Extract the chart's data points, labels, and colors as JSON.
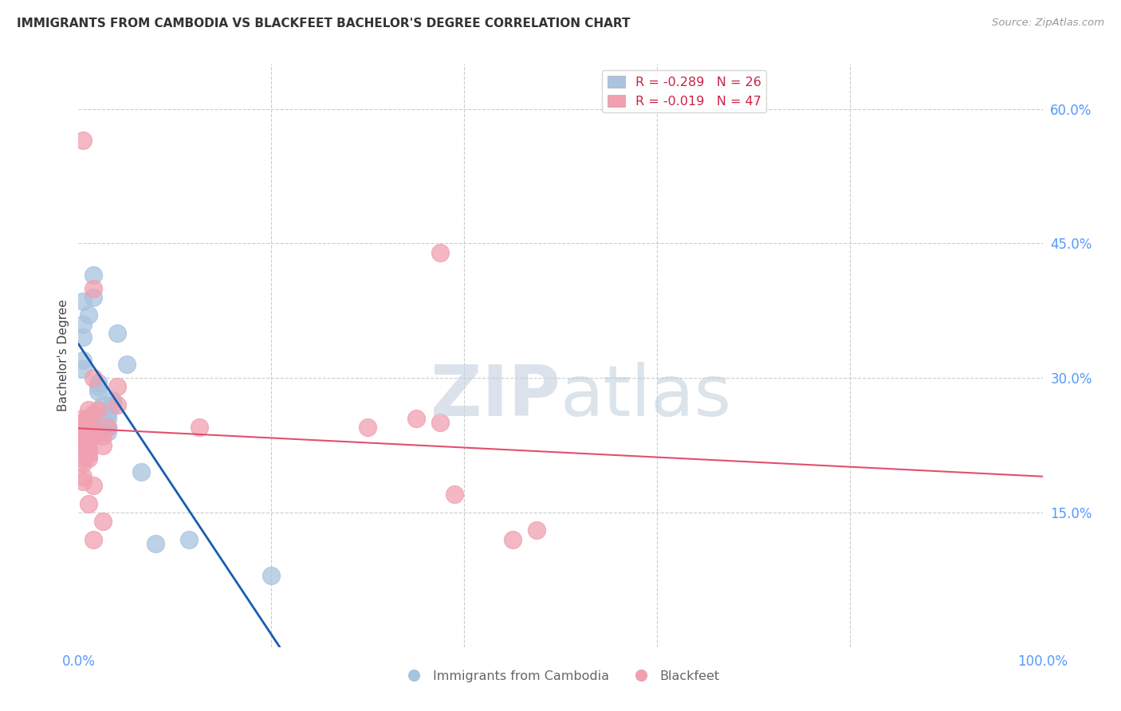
{
  "title": "IMMIGRANTS FROM CAMBODIA VS BLACKFEET BACHELOR'S DEGREE CORRELATION CHART",
  "source": "Source: ZipAtlas.com",
  "ylabel": "Bachelor's Degree",
  "legend_blue_r": "R = -0.289",
  "legend_blue_n": "N = 26",
  "legend_pink_r": "R = -0.019",
  "legend_pink_n": "N = 47",
  "legend_label_blue": "Immigrants from Cambodia",
  "legend_label_pink": "Blackfeet",
  "blue_points": [
    [
      0.5,
      38.5
    ],
    [
      1.5,
      41.5
    ],
    [
      1.0,
      37.0
    ],
    [
      0.5,
      36.0
    ],
    [
      0.5,
      34.5
    ],
    [
      0.5,
      32.0
    ],
    [
      0.5,
      31.0
    ],
    [
      1.5,
      39.0
    ],
    [
      2.0,
      29.5
    ],
    [
      2.0,
      29.0
    ],
    [
      2.0,
      28.5
    ],
    [
      2.5,
      27.0
    ],
    [
      3.0,
      26.0
    ],
    [
      2.5,
      25.5
    ],
    [
      3.0,
      25.5
    ],
    [
      2.5,
      25.0
    ],
    [
      3.0,
      24.5
    ],
    [
      3.0,
      24.0
    ],
    [
      3.5,
      27.5
    ],
    [
      3.5,
      27.0
    ],
    [
      4.0,
      35.0
    ],
    [
      5.0,
      31.5
    ],
    [
      6.5,
      19.5
    ],
    [
      8.0,
      11.5
    ],
    [
      11.5,
      12.0
    ],
    [
      20.0,
      8.0
    ]
  ],
  "pink_points": [
    [
      0.5,
      56.5
    ],
    [
      0.5,
      25.5
    ],
    [
      0.5,
      25.0
    ],
    [
      0.5,
      24.5
    ],
    [
      0.5,
      24.0
    ],
    [
      0.5,
      23.5
    ],
    [
      0.5,
      23.0
    ],
    [
      0.5,
      22.5
    ],
    [
      0.5,
      22.0
    ],
    [
      0.5,
      21.0
    ],
    [
      0.5,
      20.5
    ],
    [
      0.5,
      19.0
    ],
    [
      0.5,
      18.5
    ],
    [
      1.0,
      26.5
    ],
    [
      1.0,
      25.5
    ],
    [
      1.0,
      25.0
    ],
    [
      1.0,
      24.5
    ],
    [
      1.0,
      24.0
    ],
    [
      1.0,
      23.5
    ],
    [
      1.0,
      23.0
    ],
    [
      1.0,
      22.0
    ],
    [
      1.0,
      21.5
    ],
    [
      1.0,
      21.0
    ],
    [
      1.0,
      16.0
    ],
    [
      1.5,
      40.0
    ],
    [
      1.5,
      30.0
    ],
    [
      1.5,
      26.0
    ],
    [
      1.5,
      24.0
    ],
    [
      1.5,
      23.5
    ],
    [
      1.5,
      18.0
    ],
    [
      1.5,
      12.0
    ],
    [
      2.0,
      26.5
    ],
    [
      2.0,
      24.0
    ],
    [
      2.5,
      23.5
    ],
    [
      2.5,
      22.5
    ],
    [
      2.5,
      14.0
    ],
    [
      3.0,
      24.5
    ],
    [
      4.0,
      29.0
    ],
    [
      4.0,
      27.0
    ],
    [
      12.5,
      24.5
    ],
    [
      30.0,
      24.5
    ],
    [
      35.0,
      25.5
    ],
    [
      37.5,
      44.0
    ],
    [
      37.5,
      25.0
    ],
    [
      39.0,
      17.0
    ],
    [
      45.0,
      12.0
    ],
    [
      47.5,
      13.0
    ]
  ],
  "blue_color": "#a8c4e0",
  "pink_color": "#f0a0b0",
  "blue_line_color": "#1a5cb0",
  "pink_line_color": "#e05070",
  "background_color": "#ffffff",
  "grid_color": "#cccccc",
  "title_color": "#333333",
  "axis_label_color": "#5599ff",
  "xlim": [
    0,
    100
  ],
  "ylim": [
    0,
    65
  ],
  "yticks": [
    15,
    30,
    45,
    60
  ],
  "xticks": [
    0,
    100
  ],
  "xtick_labels": [
    "0.0%",
    "100.0%"
  ],
  "ytick_labels": [
    "15.0%",
    "30.0%",
    "45.0%",
    "60.0%"
  ],
  "blue_solid_end": 35,
  "blue_dashed_end": 90
}
